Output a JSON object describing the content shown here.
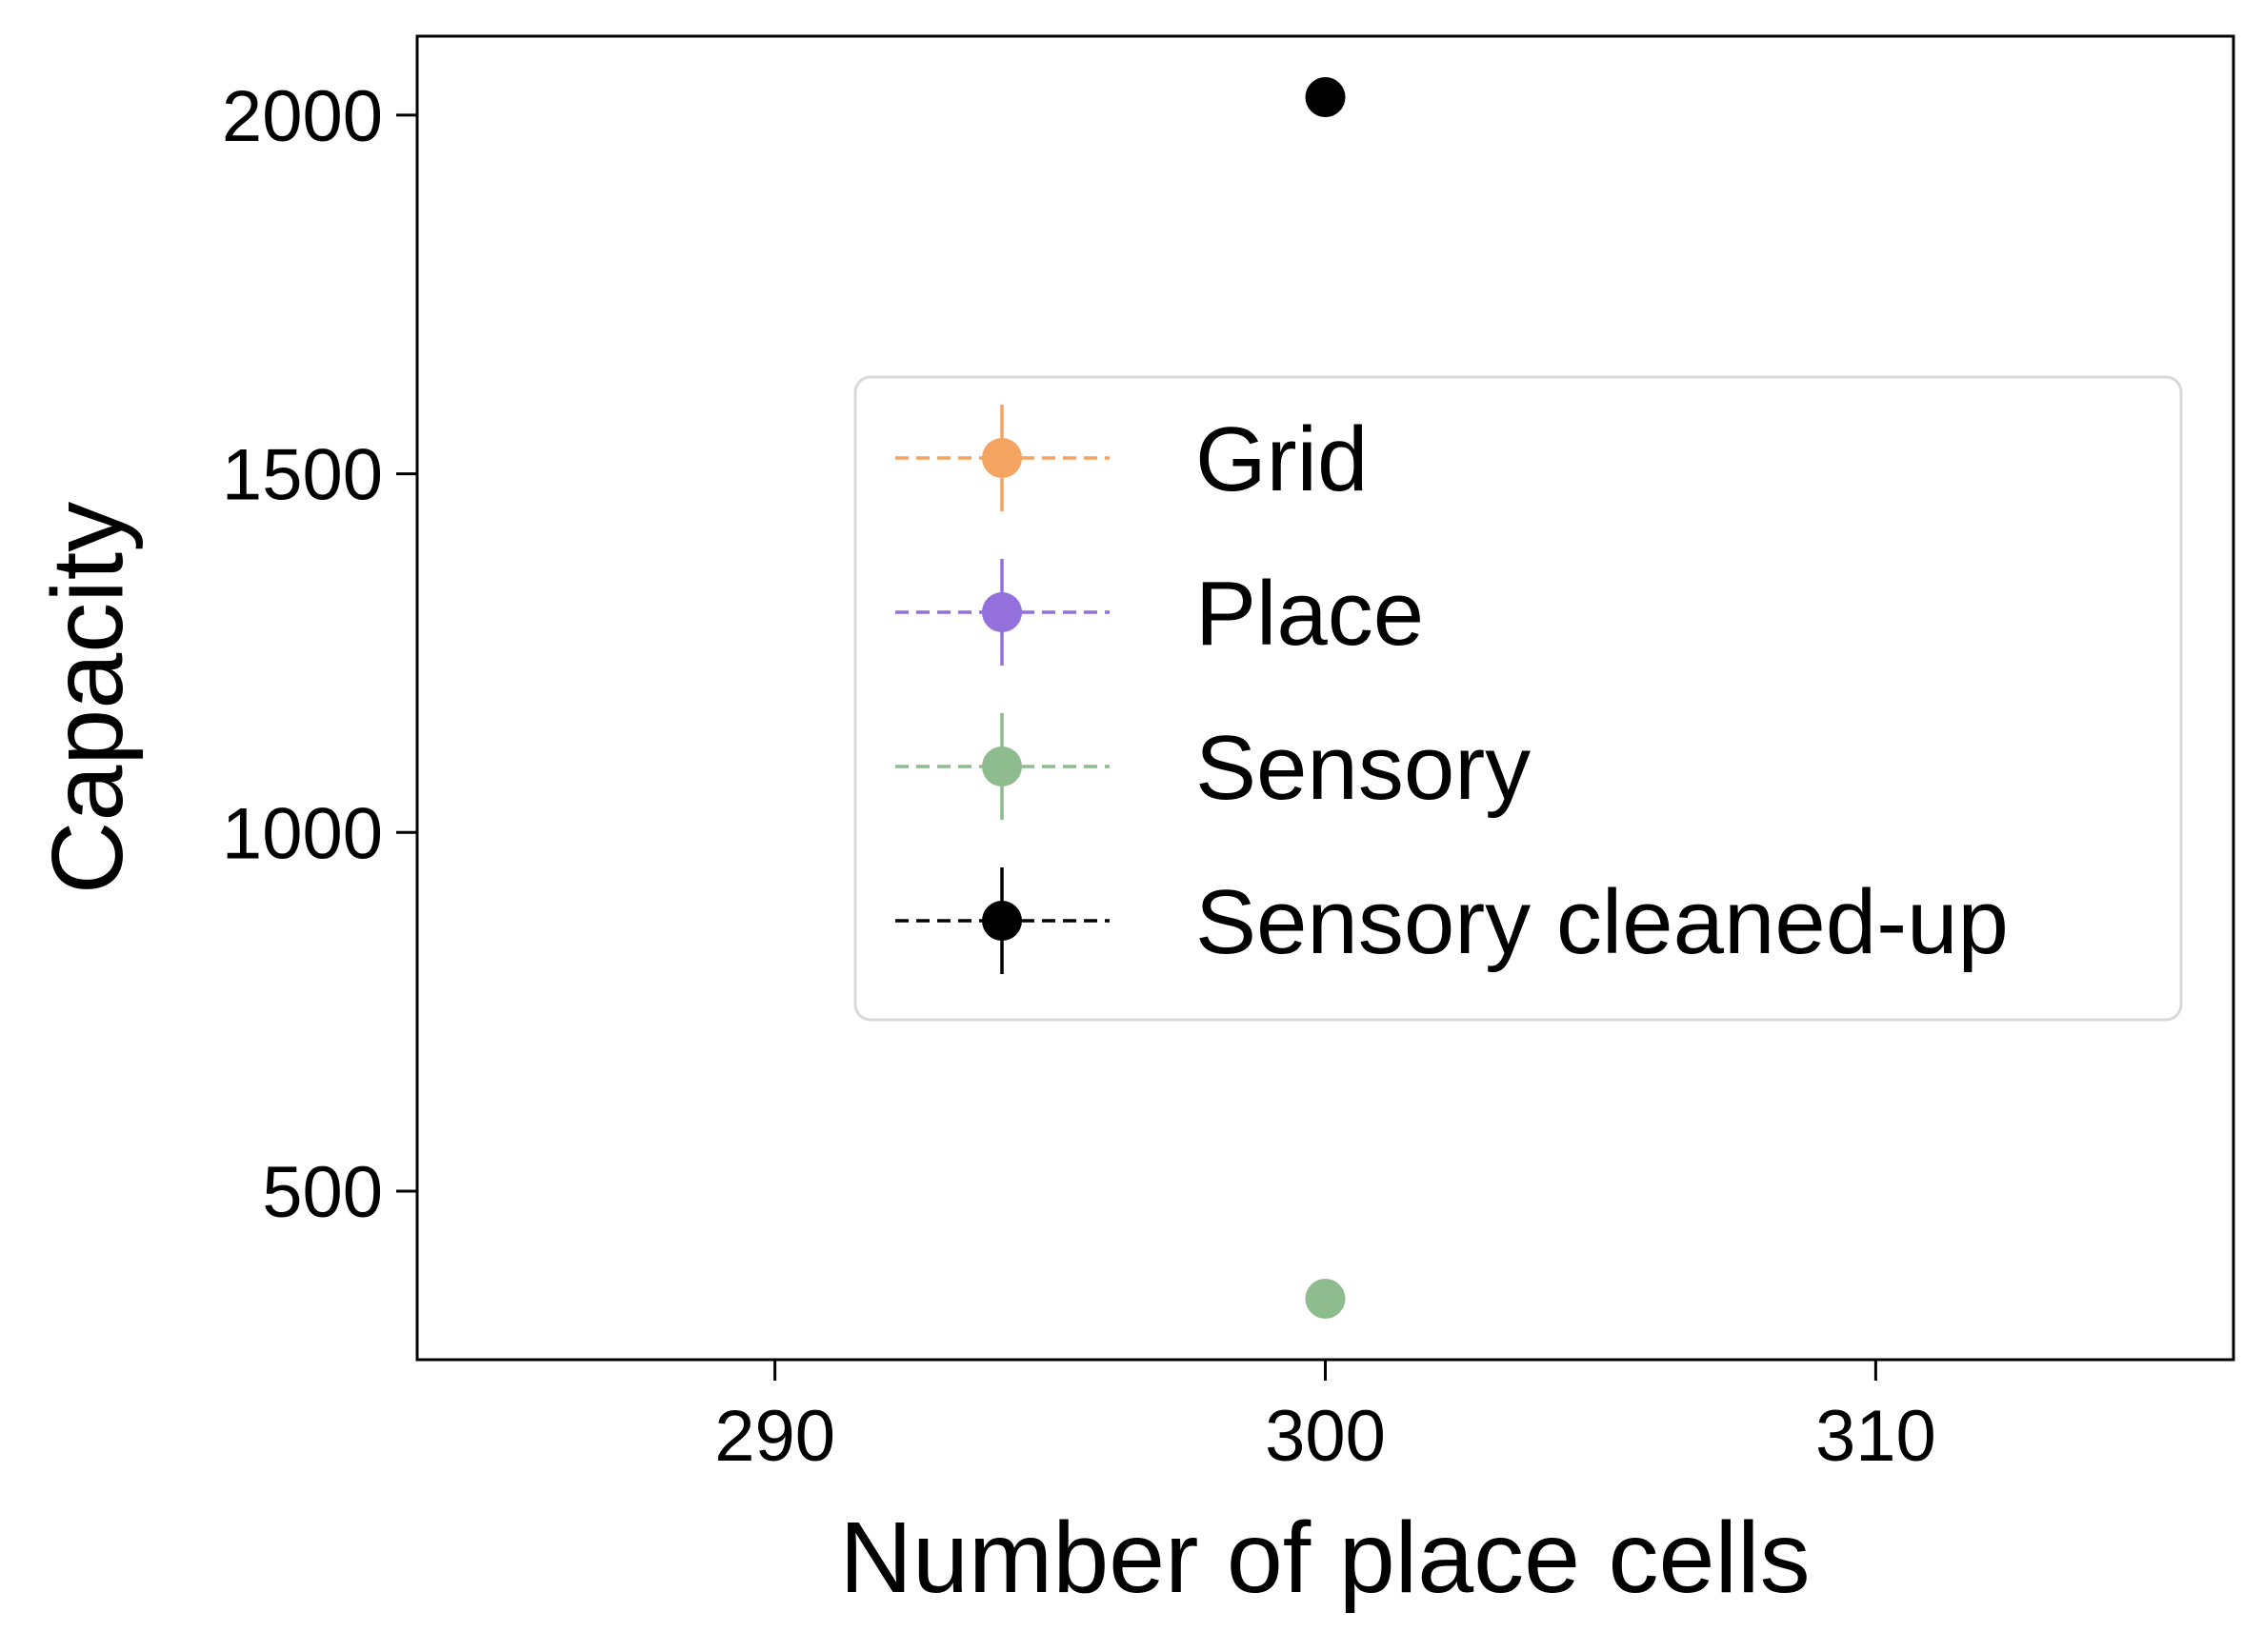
{
  "chart_data": {
    "type": "scatter",
    "title": "",
    "xlabel": "Number of place cells",
    "ylabel": "Capacity",
    "xlim": [
      283.5,
      316.5
    ],
    "ylim": [
      265,
      2110
    ],
    "xticks": [
      290,
      300,
      310
    ],
    "yticks": [
      500,
      1000,
      1500,
      2000
    ],
    "grid": false,
    "legend_position": "center-right",
    "series": [
      {
        "name": "Grid",
        "color": "#F4A460",
        "line_style": "dashed",
        "marker": "circle",
        "points": []
      },
      {
        "name": "Place",
        "color": "#9370DB",
        "line_style": "dashed",
        "marker": "circle",
        "points": []
      },
      {
        "name": "Sensory",
        "color": "#8FBC8F",
        "line_style": "dashed",
        "marker": "circle",
        "points": [
          {
            "x": 300,
            "y": 350
          }
        ]
      },
      {
        "name": "Sensory cleaned-up",
        "color": "#000000",
        "line_style": "dashed",
        "marker": "circle",
        "points": [
          {
            "x": 300,
            "y": 2025
          }
        ]
      }
    ]
  }
}
